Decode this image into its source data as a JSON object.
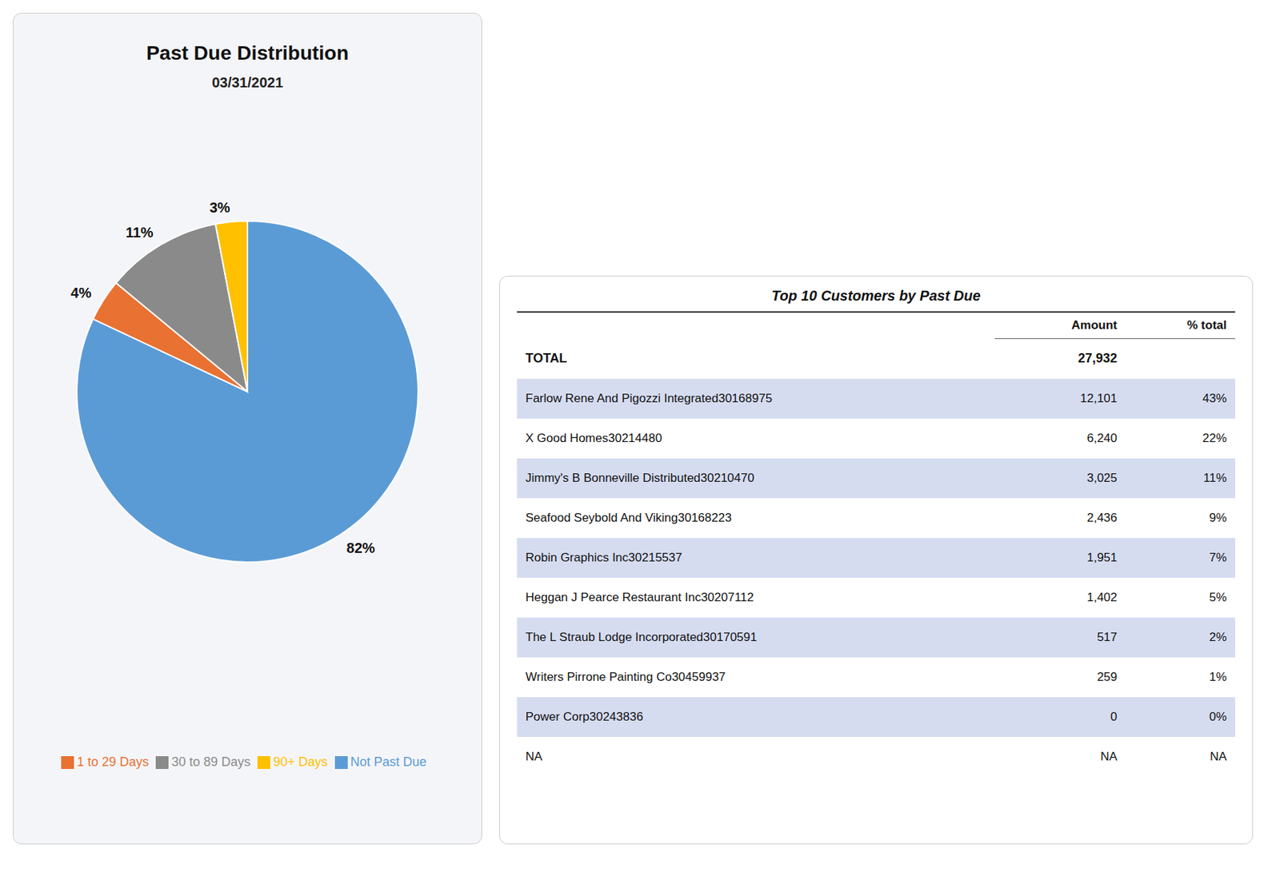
{
  "chart_data": [
    {
      "type": "pie",
      "title": "Past Due Distribution",
      "subtitle": "03/31/2021",
      "categories": [
        "Not Past Due",
        "1 to 29 Days",
        "30 to 89 Days",
        "90+ Days"
      ],
      "values": [
        82,
        4,
        11,
        3
      ],
      "value_labels": [
        "82%",
        "4%",
        "11%",
        "3%"
      ],
      "colors": [
        "#5B9BD5",
        "#E97132",
        "#8A8A8A",
        "#FFC000"
      ],
      "data_labels": true,
      "legend": "bottom"
    },
    {
      "type": "table",
      "title": "Top 10 Customers by Past Due",
      "columns": [
        "Amount",
        "% total"
      ],
      "rows": [
        [
          "TOTAL",
          "27,932",
          null
        ],
        [
          "Farlow Rene And Pigozzi Integrated30168975",
          "12,101",
          "43%"
        ],
        [
          "X Good Homes30214480",
          "6,240",
          "22%"
        ],
        [
          "Jimmy's B Bonneville Distributed30210470",
          "3,025",
          "11%"
        ],
        [
          "Seafood Seybold And Viking30168223",
          "2,436",
          "9%"
        ],
        [
          "Robin Graphics Inc30215537",
          "1,951",
          "7%"
        ],
        [
          "Heggan J Pearce Restaurant Inc30207112",
          "1,402",
          "5%"
        ],
        [
          "The L Straub Lodge Incorporated30170591",
          "517",
          "2%"
        ],
        [
          "Writers Pirrone Painting Co30459937",
          "259",
          "1%"
        ],
        [
          "Power Corp30243836",
          "0",
          "0%"
        ],
        [
          "NA",
          "NA",
          "NA"
        ]
      ],
      "color": "#D6DCF0"
    }
  ]
}
